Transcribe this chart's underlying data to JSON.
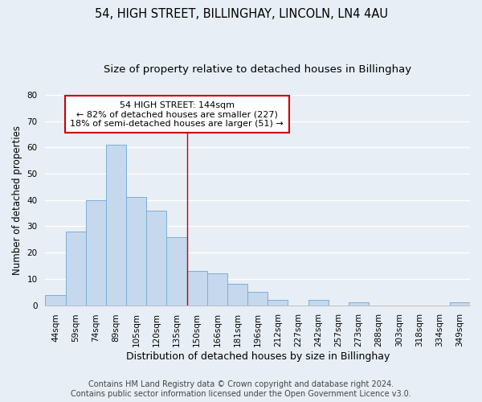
{
  "title": "54, HIGH STREET, BILLINGHAY, LINCOLN, LN4 4AU",
  "subtitle": "Size of property relative to detached houses in Billinghay",
  "xlabel": "Distribution of detached houses by size in Billinghay",
  "ylabel": "Number of detached properties",
  "bar_labels": [
    "44sqm",
    "59sqm",
    "74sqm",
    "89sqm",
    "105sqm",
    "120sqm",
    "135sqm",
    "150sqm",
    "166sqm",
    "181sqm",
    "196sqm",
    "212sqm",
    "227sqm",
    "242sqm",
    "257sqm",
    "273sqm",
    "288sqm",
    "303sqm",
    "318sqm",
    "334sqm",
    "349sqm"
  ],
  "bar_values": [
    4,
    28,
    40,
    61,
    41,
    36,
    26,
    13,
    12,
    8,
    5,
    2,
    0,
    2,
    0,
    1,
    0,
    0,
    0,
    0,
    1
  ],
  "bar_color": "#c5d8ed",
  "bar_edge_color": "#7aafd4",
  "ylim": [
    0,
    80
  ],
  "vline_x": 6.5,
  "vline_color": "#cc0000",
  "annotation_title": "54 HIGH STREET: 144sqm",
  "annotation_line1": "← 82% of detached houses are smaller (227)",
  "annotation_line2": "18% of semi-detached houses are larger (51) →",
  "annotation_box_facecolor": "#ffffff",
  "annotation_box_edgecolor": "#cc0000",
  "footer1": "Contains HM Land Registry data © Crown copyright and database right 2024.",
  "footer2": "Contains public sector information licensed under the Open Government Licence v3.0.",
  "background_color": "#e8eef5",
  "grid_color": "#ffffff",
  "title_fontsize": 10.5,
  "subtitle_fontsize": 9.5,
  "ylabel_fontsize": 8.5,
  "xlabel_fontsize": 9,
  "tick_fontsize": 7.5,
  "annotation_fontsize": 8,
  "footer_fontsize": 7
}
